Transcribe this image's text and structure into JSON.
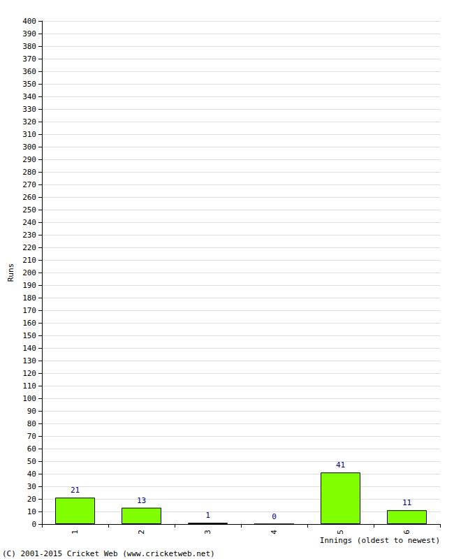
{
  "chart_data": {
    "type": "bar",
    "categories": [
      "1",
      "2",
      "3",
      "4",
      "5",
      "6"
    ],
    "values": [
      21,
      13,
      1,
      0,
      41,
      11
    ],
    "color": "#80ff00",
    "xlabel": "Innings (oldest to newest)",
    "ylabel": "Runs",
    "ylim": [
      0,
      400
    ],
    "yticks": [
      0,
      10,
      20,
      30,
      40,
      50,
      60,
      70,
      80,
      90,
      100,
      110,
      120,
      130,
      140,
      150,
      160,
      170,
      180,
      190,
      200,
      210,
      220,
      230,
      240,
      250,
      260,
      270,
      280,
      290,
      300,
      310,
      320,
      330,
      340,
      350,
      360,
      370,
      380,
      390,
      400
    ],
    "grid": true,
    "data_labels": true,
    "annotations": [
      "(C) 2001-2015 Cricket Web (www.cricketweb.net)"
    ]
  }
}
